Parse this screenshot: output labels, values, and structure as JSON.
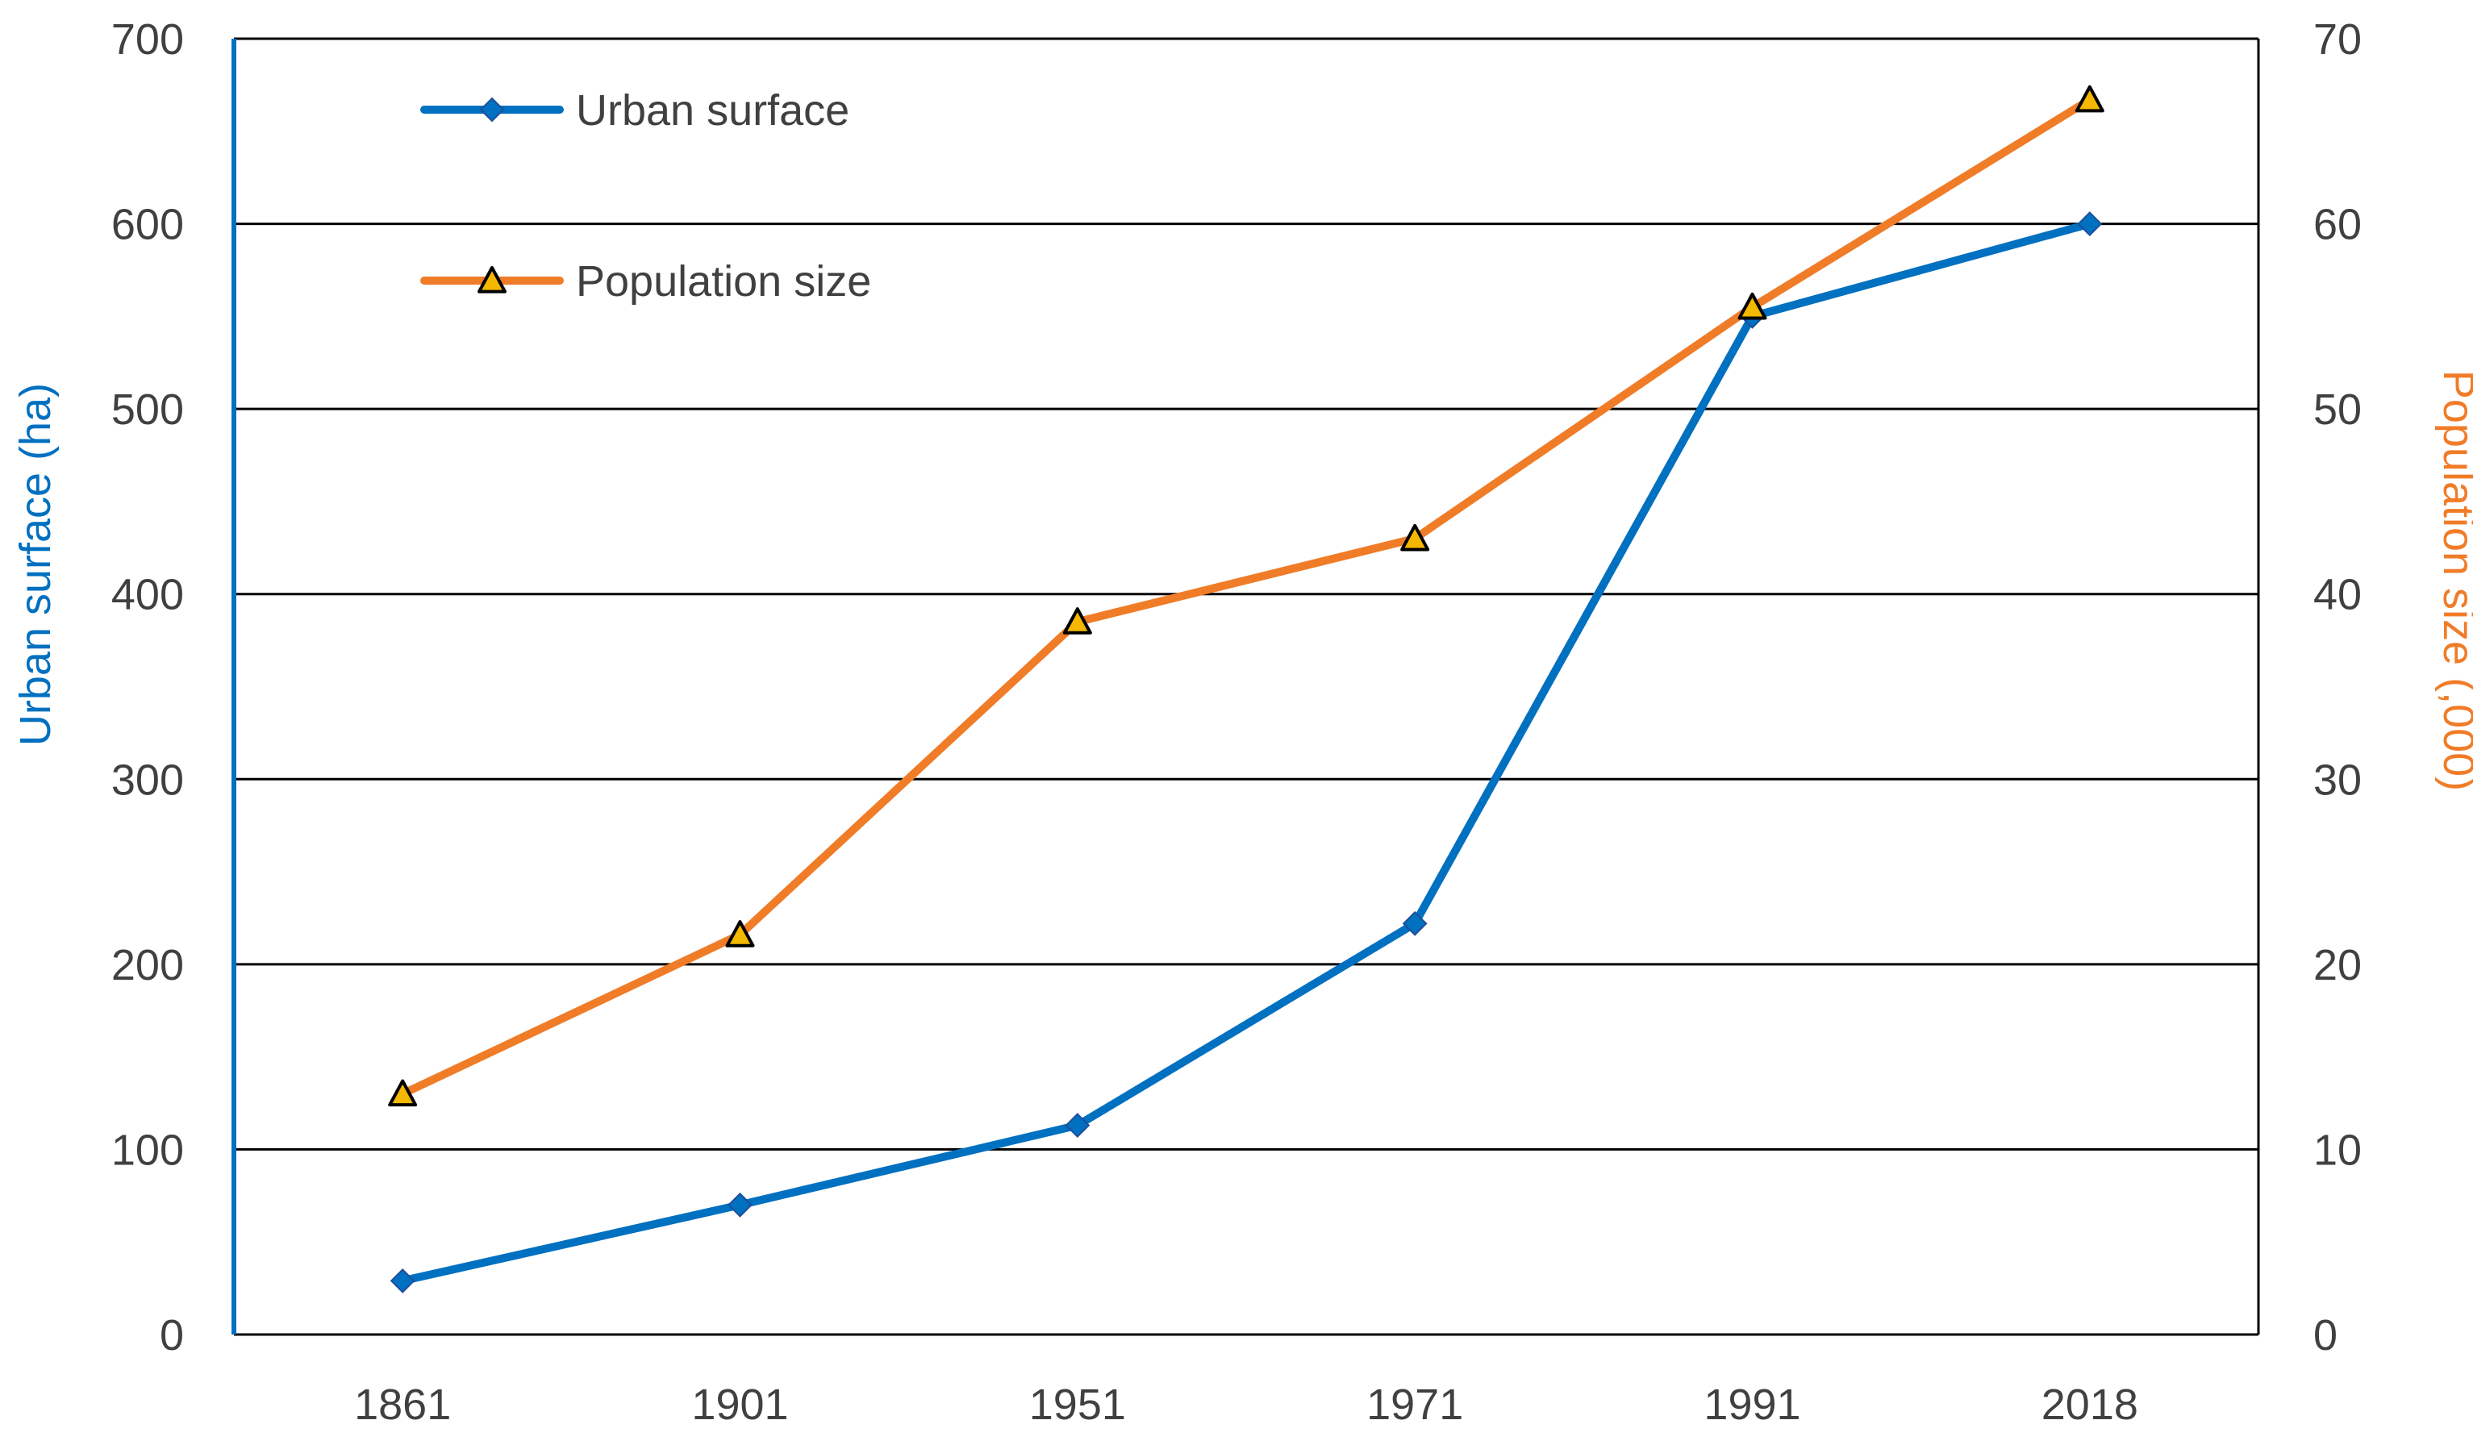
{
  "chart_data": {
    "type": "line",
    "title": "",
    "categories": [
      "1861",
      "1901",
      "1951",
      "1971",
      "1991",
      "2018"
    ],
    "xlabel": "",
    "ylabel_left": "Urban surface (ha)",
    "ylabel_right": "Population size (,000)",
    "ylim_left": [
      0,
      700
    ],
    "ylim_right": [
      0,
      70
    ],
    "yticks_left": [
      "0",
      "100",
      "200",
      "300",
      "400",
      "500",
      "600",
      "700"
    ],
    "yticks_right": [
      "0",
      "10",
      "20",
      "30",
      "40",
      "50",
      "60",
      "70"
    ],
    "grid": true,
    "legend_position": "top-left",
    "series": [
      {
        "name": "Urban surface",
        "axis": "left",
        "marker": "diamond",
        "color": "#0070c0",
        "values": [
          29,
          70,
          113,
          222,
          550,
          600
        ]
      },
      {
        "name": "Population size",
        "axis": "right",
        "marker": "triangle",
        "color": "#f07c28",
        "marker_fill": "#f5b800",
        "values": [
          13,
          21.6,
          38.5,
          43,
          55.5,
          66.7
        ]
      }
    ]
  },
  "colors": {
    "left_axis_label": "#0070c0",
    "right_axis_label": "#f07c28",
    "tick_text": "#404040",
    "grid": "#000000"
  }
}
